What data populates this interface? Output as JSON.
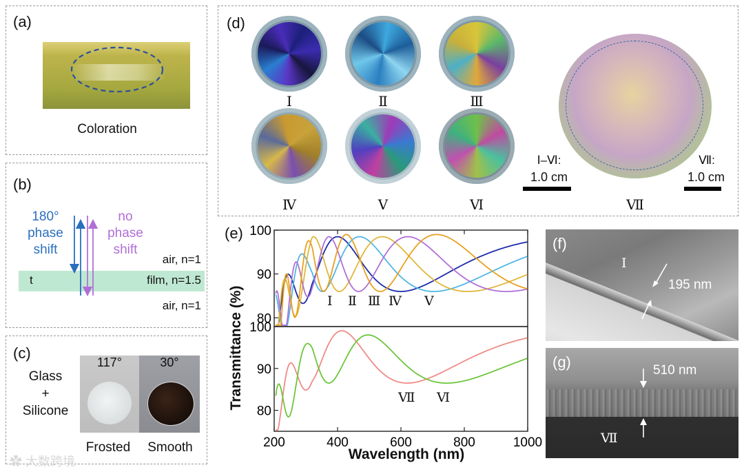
{
  "panel_a": {
    "label": "(a)",
    "caption": "Coloration"
  },
  "panel_b": {
    "label": "(b)",
    "left_annotation": [
      "180°",
      "phase",
      "shift"
    ],
    "right_annotation": [
      "no",
      "phase",
      "shift"
    ],
    "top_medium": "air, n=1",
    "film_medium": "film, n=1.5",
    "bottom_medium": "air, n=1",
    "thickness_symbol": "t",
    "colors": {
      "phase_shift": "#2a6fbd",
      "no_phase_shift": "#b06fd6",
      "film": "#bfe8d2"
    }
  },
  "panel_c": {
    "label": "(c)",
    "substrate": [
      "Glass",
      "+",
      "Silicone"
    ],
    "angle_frosted": "117°",
    "angle_smooth": "30°",
    "frosted_label": "Frosted",
    "smooth_label": "Smooth"
  },
  "panel_d": {
    "label": "(d)",
    "samples": [
      "Ⅰ",
      "Ⅱ",
      "Ⅲ",
      "Ⅳ",
      "Ⅴ",
      "Ⅵ"
    ],
    "large_sample": "Ⅶ",
    "scale_small_label": "Ⅰ–Ⅵ:",
    "scale_small_value": "1.0 cm",
    "scale_large_label": "Ⅶ:",
    "scale_large_value": "1.0 cm"
  },
  "panel_e": {
    "label": "(e)",
    "ylabel": "Transmittance (%)",
    "xlabel": "Wavelength (nm)",
    "x_ticks": [
      "200",
      "400",
      "600",
      "800",
      "1000"
    ],
    "top_y_ticks": [
      "80",
      "90",
      "100"
    ],
    "bottom_y_ticks": [
      "80",
      "90",
      "100"
    ],
    "top_curve_labels": [
      "Ⅰ",
      "Ⅱ",
      "Ⅲ",
      "Ⅳ",
      "Ⅴ"
    ],
    "bottom_curve_labels": [
      "Ⅶ",
      "Ⅵ"
    ]
  },
  "panel_f": {
    "label": "(f)",
    "sample": "Ⅰ",
    "thickness": "195 nm"
  },
  "panel_g": {
    "label": "(g)",
    "sample": "Ⅶ",
    "thickness": "510 nm"
  },
  "watermark": "大数跨境",
  "chart_data": {
    "type": "line",
    "title": "",
    "xlabel": "Wavelength (nm)",
    "ylabel": "Transmittance (%)",
    "xlim": [
      200,
      1000
    ],
    "panels": [
      {
        "name": "top",
        "ylim": [
          78,
          100
        ],
        "series": [
          {
            "name": "Ⅰ",
            "color": "#1a2aa8",
            "min_wavelength": 600,
            "t_min": 86,
            "t_max": 98.5
          },
          {
            "name": "Ⅱ",
            "color": "#4fb6e3",
            "min_wavelength": 690,
            "t_min": 86,
            "t_max": 98.5
          },
          {
            "name": "Ⅲ",
            "color": "#e0b63a",
            "min_wavelength": 780,
            "t_min": 86,
            "t_max": 98.5
          },
          {
            "name": "Ⅳ",
            "color": "#b06fd6",
            "min_wavelength": 880,
            "t_min": 86,
            "t_max": 98.5
          },
          {
            "name": "Ⅴ",
            "color": "#e8a020",
            "min_wavelength": 990,
            "t_min": 86,
            "t_max": 99
          }
        ]
      },
      {
        "name": "bottom",
        "ylim": [
          75,
          100
        ],
        "series": [
          {
            "name": "Ⅶ",
            "color": "#ef8b86",
            "min_wavelength": 620,
            "t_min": 86.5,
            "t_max": 99
          },
          {
            "name": "Ⅵ",
            "color": "#6cc63a",
            "min_wavelength": 730,
            "t_min": 86.5,
            "t_max": 98
          }
        ]
      }
    ]
  }
}
